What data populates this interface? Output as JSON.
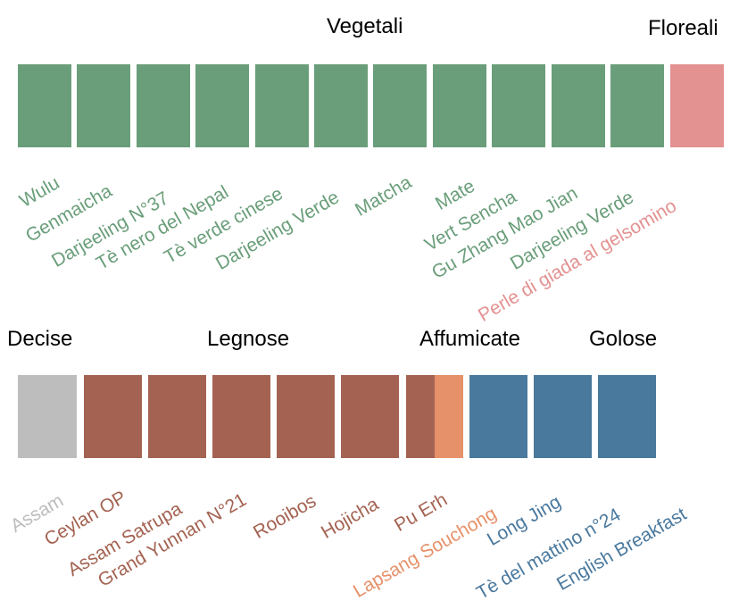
{
  "colors": {
    "vegetali": "#6A9E7A",
    "floreali": "#E39191",
    "decise": "#BDBDBD",
    "legnose": "#A46352",
    "affumicate": "#E6916A",
    "golose": "#4A799E"
  },
  "row1": {
    "groups": [
      {
        "title": "Vegetali",
        "color_key": "vegetali"
      },
      {
        "title": "Floreali",
        "color_key": "floreali"
      }
    ],
    "teas": [
      {
        "name": "Wulu",
        "color_key": "vegetali"
      },
      {
        "name": "Genmaicha",
        "color_key": "vegetali"
      },
      {
        "name": "Darjeeling N°37",
        "color_key": "vegetali"
      },
      {
        "name": "Tè nero del Nepal",
        "color_key": "vegetali"
      },
      {
        "name": "Tè verde cinese",
        "color_key": "vegetali"
      },
      {
        "name": "Darjeeling Verde",
        "color_key": "vegetali"
      },
      {
        "name": "Matcha",
        "color_key": "vegetali"
      },
      {
        "name": "Mate",
        "color_key": "vegetali"
      },
      {
        "name": "Vert Sencha",
        "color_key": "vegetali"
      },
      {
        "name": "Gu Zhang Mao Jian",
        "color_key": "vegetali"
      },
      {
        "name": "Darjeeling Verde",
        "color_key": "vegetali"
      },
      {
        "name": "Perle di giada al gelsomino",
        "color_key": "floreali"
      }
    ]
  },
  "row2": {
    "groups": [
      {
        "title": "Decise",
        "color_key": "decise"
      },
      {
        "title": "Legnose",
        "color_key": "legnose"
      },
      {
        "title": "Affumicate",
        "color_key": "affumicate"
      },
      {
        "title": "Golose",
        "color_key": "golose"
      }
    ],
    "teas": [
      {
        "name": "Assam",
        "color_key": "decise"
      },
      {
        "name": "Ceylan OP",
        "color_key": "legnose"
      },
      {
        "name": "Assam Satrupa",
        "color_key": "legnose"
      },
      {
        "name": "Grand Yunnan N°21",
        "color_key": "legnose"
      },
      {
        "name": "Rooibos",
        "color_key": "legnose"
      },
      {
        "name": "Hojicha",
        "color_key": "legnose"
      },
      {
        "name": "Pu Erh",
        "color_key": "legnose"
      },
      {
        "name": "Lapsang Souchong",
        "color_key": "affumicate"
      },
      {
        "name": "Long Jing",
        "color_key": "golose"
      },
      {
        "name": "Tè del mattino n°24",
        "color_key": "golose"
      },
      {
        "name": "English Breakfast",
        "color_key": "golose"
      }
    ]
  }
}
